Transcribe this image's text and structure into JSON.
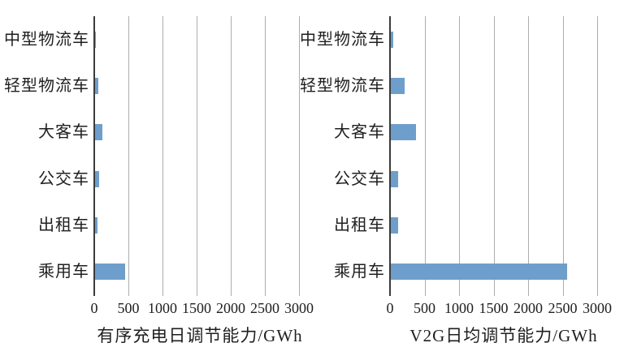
{
  "figure": {
    "colors": {
      "background": "#FFFFFF",
      "bar": "#6E9ECB",
      "gridline": "#ADADAD",
      "axis": "#3B3B3B",
      "text": "#1F1F1F"
    }
  },
  "chart_data": [
    {
      "type": "bar",
      "orientation": "horizontal",
      "title": "",
      "xlabel": "有序充电日调节能力/GWh",
      "ylabel": "",
      "categories": [
        "中型物流车",
        "轻型物流车",
        "大客车",
        "公交车",
        "出租车",
        "乘用车"
      ],
      "values": [
        10,
        50,
        110,
        60,
        40,
        440
      ],
      "xlim": [
        0,
        3000
      ],
      "xticks": [
        0,
        500,
        1000,
        1500,
        2000,
        2500,
        3000
      ],
      "grid": true,
      "legend": false,
      "unit": "GWh"
    },
    {
      "type": "bar",
      "orientation": "horizontal",
      "title": "",
      "xlabel": "V2G日均调节能力/GWh",
      "ylabel": "",
      "categories": [
        "中型物流车",
        "轻型物流车",
        "大客车",
        "公交车",
        "出租车",
        "乘用车"
      ],
      "values": [
        40,
        200,
        360,
        105,
        100,
        2550
      ],
      "xlim": [
        0,
        3000
      ],
      "xticks": [
        0,
        500,
        1000,
        1500,
        2000,
        2500,
        3000
      ],
      "grid": true,
      "legend": false,
      "unit": "GWh"
    }
  ]
}
